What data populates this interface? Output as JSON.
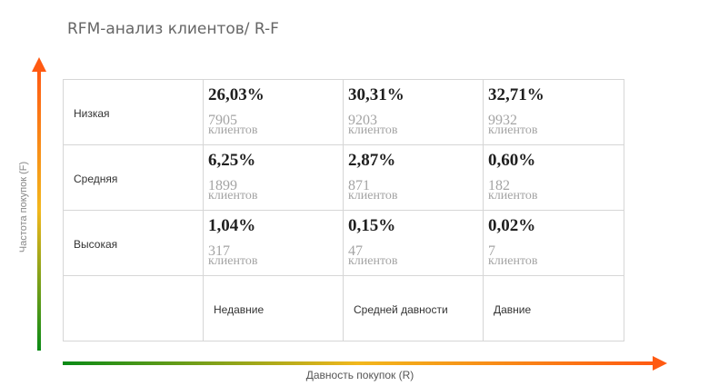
{
  "title": "RFM-анализ клиентов/ R-F",
  "y_axis_label": "Частота покупок (F)",
  "x_axis_label": "Давность покупок (R)",
  "colors": {
    "gradient_start": "#0a8a16",
    "gradient_mid": "#f2b71c",
    "gradient_end": "#ff5a12"
  },
  "rows": [
    {
      "label": "Низкая",
      "cells": [
        {
          "percent": "26,03%",
          "count": "7905",
          "unit": "клиентов"
        },
        {
          "percent": "30,31%",
          "count": "9203",
          "unit": "клиентов"
        },
        {
          "percent": "32,71%",
          "count": "9932",
          "unit": "клиентов"
        }
      ]
    },
    {
      "label": "Средняя",
      "cells": [
        {
          "percent": "6,25%",
          "count": "1899",
          "unit": "клиентов"
        },
        {
          "percent": "2,87%",
          "count": "871",
          "unit": "клиентов"
        },
        {
          "percent": "0,60%",
          "count": "182",
          "unit": "клиентов"
        }
      ]
    },
    {
      "label": "Высокая",
      "cells": [
        {
          "percent": "1,04%",
          "count": "317",
          "unit": "клиентов"
        },
        {
          "percent": "0,15%",
          "count": "47",
          "unit": "клиентов"
        },
        {
          "percent": "0,02%",
          "count": "7",
          "unit": "клиентов"
        }
      ]
    }
  ],
  "columns": [
    "Недавние",
    "Средней давности",
    "Давние"
  ]
}
